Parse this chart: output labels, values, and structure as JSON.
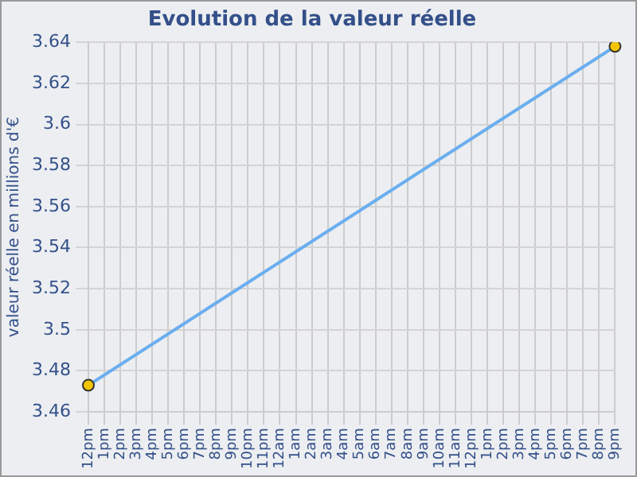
{
  "chart_data": {
    "type": "line",
    "title": "Evolution de la valeur réelle",
    "ylabel": "valeur réelle en millions d'€",
    "categories": [
      "12pm",
      "1pm",
      "2pm",
      "3pm",
      "4pm",
      "5pm",
      "6pm",
      "7pm",
      "8pm",
      "9pm",
      "10pm",
      "11pm",
      "12am",
      "1am",
      "2am",
      "3am",
      "4am",
      "5am",
      "6am",
      "7am",
      "8am",
      "9am",
      "10am",
      "11am",
      "12pm",
      "1pm",
      "2pm",
      "3pm",
      "4pm",
      "5pm",
      "6pm",
      "7pm",
      "8pm",
      "9pm"
    ],
    "series": [
      {
        "color": "#6aaeef",
        "values": [
          3.473,
          null,
          null,
          null,
          null,
          null,
          null,
          null,
          null,
          null,
          null,
          null,
          null,
          null,
          null,
          null,
          null,
          null,
          null,
          null,
          null,
          null,
          null,
          null,
          null,
          null,
          null,
          null,
          null,
          null,
          null,
          null,
          null,
          3.638
        ]
      }
    ],
    "ylim": [
      3.46,
      3.64
    ],
    "yticks": [
      3.46,
      3.48,
      3.5,
      3.52,
      3.54,
      3.56,
      3.58,
      3.6,
      3.62,
      3.64
    ],
    "grid": true,
    "marker": "circle",
    "line_style": "solid",
    "legend": false
  }
}
